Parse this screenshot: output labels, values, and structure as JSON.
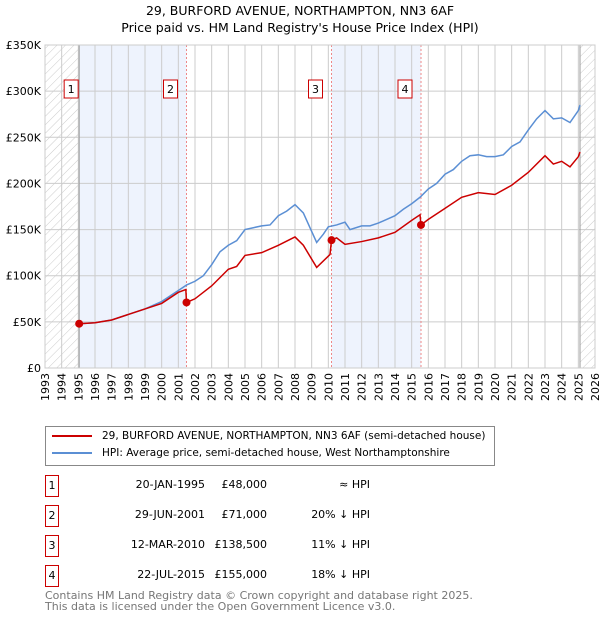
{
  "title": "29, BURFORD AVENUE, NORTHAMPTON, NN3 6AF",
  "subtitle": "Price paid vs. HM Land Registry's House Price Index (HPI)",
  "chart_data": {
    "type": "line",
    "xlim": [
      1993,
      2026
    ],
    "ylim": [
      0,
      350000
    ],
    "yticks": [
      {
        "v": 0,
        "label": "£0"
      },
      {
        "v": 50000,
        "label": "£50K"
      },
      {
        "v": 100000,
        "label": "£100K"
      },
      {
        "v": 150000,
        "label": "£150K"
      },
      {
        "v": 200000,
        "label": "£200K"
      },
      {
        "v": 250000,
        "label": "£250K"
      },
      {
        "v": 300000,
        "label": "£300K"
      },
      {
        "v": 350000,
        "label": "£350K"
      }
    ],
    "xticks": [
      "1993",
      "1994",
      "1995",
      "1996",
      "1997",
      "1998",
      "1999",
      "2000",
      "2001",
      "2002",
      "2003",
      "2004",
      "2005",
      "2006",
      "2007",
      "2008",
      "2009",
      "2010",
      "2011",
      "2012",
      "2013",
      "2014",
      "2015",
      "2016",
      "2017",
      "2018",
      "2019",
      "2020",
      "2021",
      "2022",
      "2023",
      "2024",
      "2025",
      "2026"
    ],
    "shaded_ranges": [
      [
        1995.05,
        2001.49
      ],
      [
        2010.19,
        2015.56
      ]
    ],
    "hatched_ranges": [
      [
        1993,
        1995.05
      ],
      [
        2025.1,
        2026
      ]
    ],
    "series": [
      {
        "name": "29, BURFORD AVENUE, NORTHAMPTON, NN3 6AF (semi-detached house)",
        "color": "#cc0000",
        "x": [
          1995.05,
          1996,
          1997,
          1998,
          1999,
          2000,
          2001,
          2001.45,
          2001.49,
          2002,
          2003,
          2004,
          2004.5,
          2005,
          2006,
          2007,
          2008,
          2008.5,
          2009.3,
          2010.1,
          2010.19,
          2010.5,
          2011,
          2012,
          2013,
          2014,
          2015,
          2015.5,
          2015.56,
          2016,
          2017,
          2018,
          2019,
          2020,
          2021,
          2022,
          2023,
          2023.5,
          2024,
          2024.5,
          2025,
          2025.1
        ],
        "y": [
          48000,
          49000,
          52000,
          58000,
          64000,
          70000,
          82000,
          85000,
          71000,
          75000,
          89000,
          107000,
          110000,
          122000,
          125000,
          133000,
          142000,
          133000,
          109000,
          123000,
          138500,
          141000,
          134000,
          137000,
          141000,
          147000,
          160000,
          166000,
          155000,
          161000,
          173000,
          185000,
          190000,
          188000,
          198000,
          212000,
          230000,
          221000,
          224000,
          218000,
          229000,
          234000
        ]
      },
      {
        "name": "HPI: Average price, semi-detached house, West Northamptonshire",
        "color": "#5b8fd4",
        "x": [
          1995.05,
          1996,
          1997,
          1998,
          1999,
          2000,
          2001,
          2001.5,
          2002,
          2002.5,
          2003,
          2003.5,
          2004,
          2004.5,
          2005,
          2005.5,
          2006,
          2006.5,
          2007,
          2007.5,
          2008,
          2008.5,
          2009,
          2009.3,
          2009.7,
          2010,
          2010.5,
          2011,
          2011.3,
          2012,
          2012.5,
          2013,
          2014,
          2014.5,
          2015,
          2015.5,
          2016,
          2016.5,
          2017,
          2017.5,
          2018,
          2018.5,
          2019,
          2019.5,
          2020,
          2020.5,
          2021,
          2021.5,
          2022,
          2022.5,
          2023,
          2023.5,
          2024,
          2024.5,
          2025,
          2025.1
        ],
        "y": [
          48000,
          49000,
          52000,
          58000,
          64000,
          72000,
          84000,
          90000,
          94000,
          100000,
          112000,
          126000,
          133000,
          138000,
          150000,
          152000,
          154000,
          155000,
          165000,
          170000,
          177000,
          168000,
          148000,
          136000,
          145000,
          153000,
          155000,
          158000,
          150000,
          154000,
          154000,
          157000,
          165000,
          172000,
          178000,
          185000,
          194000,
          200000,
          210000,
          215000,
          224000,
          230000,
          231000,
          229000,
          229000,
          231000,
          240000,
          245000,
          258000,
          270000,
          279000,
          270000,
          271000,
          266000,
          279000,
          285000
        ]
      }
    ],
    "sales": [
      {
        "n": "1",
        "x": 1995.05,
        "y": 48000,
        "date": "20-JAN-1995",
        "price": "£48,000",
        "hpi": "≈ HPI"
      },
      {
        "n": "2",
        "x": 2001.49,
        "y": 71000,
        "date": "29-JUN-2001",
        "price": "£71,000",
        "hpi": "20% ↓ HPI"
      },
      {
        "n": "3",
        "x": 2010.19,
        "y": 138500,
        "date": "12-MAR-2010",
        "price": "£138,500",
        "hpi": "11% ↓ HPI"
      },
      {
        "n": "4",
        "x": 2015.56,
        "y": 155000,
        "date": "22-JUL-2015",
        "price": "£155,000",
        "hpi": "18% ↓ HPI"
      }
    ]
  },
  "footer": [
    "Contains HM Land Registry data © Crown copyright and database right 2025.",
    "This data is licensed under the Open Government Licence v3.0."
  ]
}
